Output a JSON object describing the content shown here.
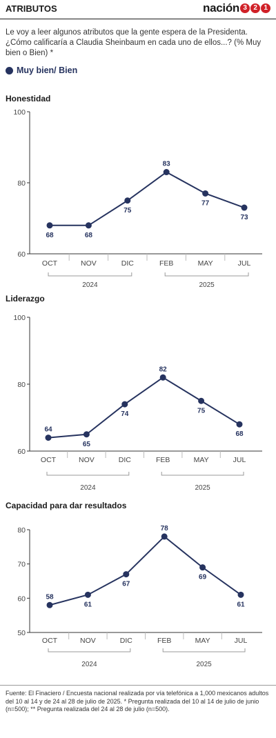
{
  "header": {
    "title": "ATRIBUTOS",
    "logo_word": "nación",
    "logo_digits": [
      "3",
      "2",
      "1"
    ]
  },
  "intro": "Le voy a leer algunos atributos que la gente espera de la Presidenta. ¿Cómo calificaría a Claudia Sheinbaum en cada uno de ellos...? (% Muy bien o Bien) *",
  "legend": {
    "label": "Muy bien/ Bien"
  },
  "colors": {
    "series": "#26335f",
    "axis": "#444444",
    "grid": "#bbbbbb",
    "logo_accent": "#d02128"
  },
  "chart_data": [
    {
      "type": "line",
      "title": "Honestidad",
      "categories": [
        "OCT",
        "NOV",
        "DIC",
        "FEB",
        "MAY",
        "JUL"
      ],
      "series": [
        {
          "name": "Muy bien/ Bien",
          "values": [
            68,
            68,
            75,
            83,
            77,
            73
          ]
        }
      ],
      "ylim": [
        60,
        100
      ],
      "yticks": [
        60,
        80,
        100
      ],
      "year_groups": [
        {
          "label": "2024",
          "from": 0,
          "to": 2
        },
        {
          "label": "2025",
          "from": 3,
          "to": 5
        }
      ]
    },
    {
      "type": "line",
      "title": "Liderazgo",
      "categories": [
        "OCT",
        "NOV",
        "DIC",
        "FEB",
        "MAY",
        "JUL"
      ],
      "series": [
        {
          "name": "Muy bien/ Bien",
          "values": [
            64,
            65,
            74,
            82,
            75,
            68
          ]
        }
      ],
      "ylim": [
        60,
        100
      ],
      "yticks": [
        60,
        80,
        100
      ],
      "year_groups": [
        {
          "label": "2024",
          "from": 0,
          "to": 2
        },
        {
          "label": "2025",
          "from": 3,
          "to": 5
        }
      ]
    },
    {
      "type": "line",
      "title": "Capacidad para dar resultados",
      "categories": [
        "OCT",
        "NOV",
        "DIC",
        "FEB",
        "MAY",
        "JUL"
      ],
      "series": [
        {
          "name": "Muy bien/ Bien",
          "values": [
            58,
            61,
            67,
            78,
            69,
            61
          ]
        }
      ],
      "ylim": [
        50,
        80
      ],
      "yticks": [
        50,
        60,
        70,
        80
      ],
      "year_groups": [
        {
          "label": "2024",
          "from": 0,
          "to": 2
        },
        {
          "label": "2025",
          "from": 3,
          "to": 5
        }
      ]
    }
  ],
  "footer": "Fuente: El Finaciero / Encuesta nacional realizada por vía telefónica a 1,000 mexicanos adultos del 10 al 14 y de 24 al 28 de julio de 2025. * Pregunta realizada del 10 al 14 de julio de junio (n=500); ** Pregunta realizada del 24 al 28 de julio (n=500)."
}
